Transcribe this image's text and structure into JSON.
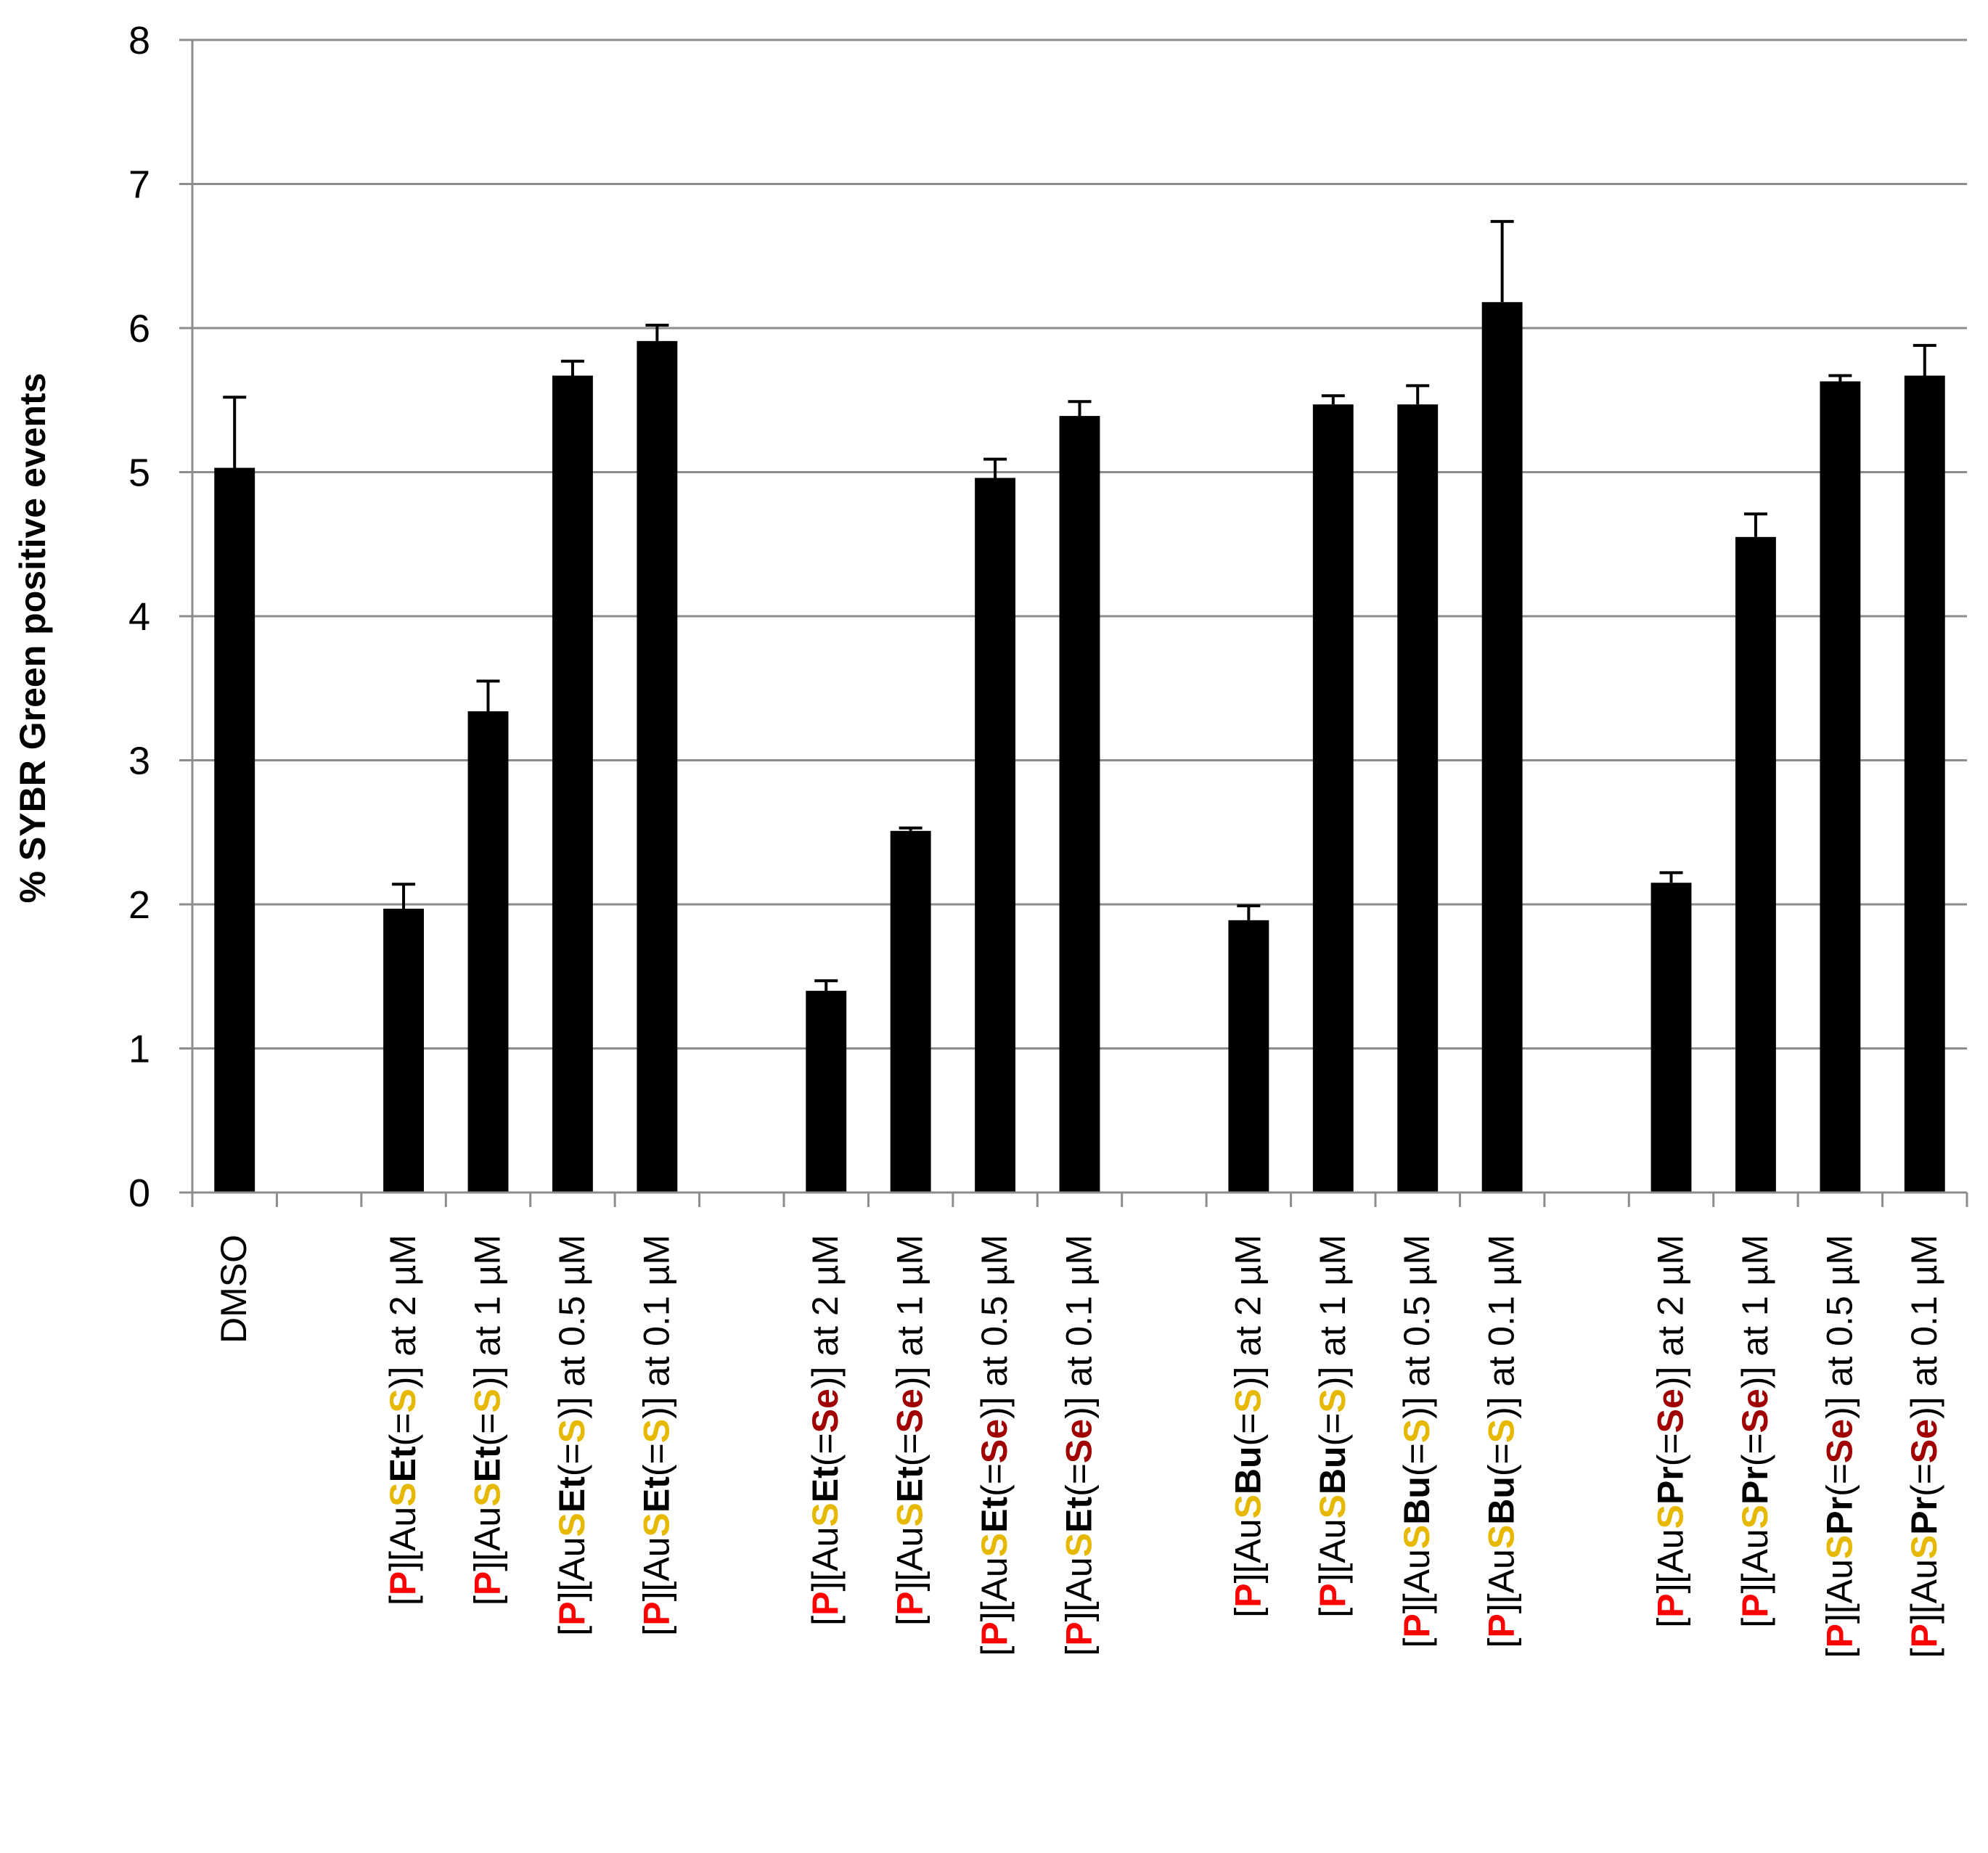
{
  "chart_data": {
    "type": "bar",
    "ylabel": "% SYBR Green positive events",
    "ylim": [
      0,
      8
    ],
    "yticks": [
      0,
      1,
      2,
      3,
      4,
      5,
      6,
      7,
      8
    ],
    "grid": true,
    "colors": {
      "bar": "#000000",
      "grid": "#8c8c8c",
      "P": "#ff0000",
      "S": "#e6b800",
      "Se": "#a00000"
    },
    "categories": [
      {
        "segments": [
          {
            "text": "DMSO"
          }
        ]
      },
      {
        "segments": []
      },
      {
        "segments": [
          {
            "text": "[",
            "style": "plain"
          },
          {
            "text": "P",
            "style": "P"
          },
          {
            "text": "][Au",
            "style": "plain"
          },
          {
            "text": "S",
            "style": "S"
          },
          {
            "text": "Et",
            "style": "bold"
          },
          {
            "text": "(=",
            "style": "plain"
          },
          {
            "text": "S",
            "style": "S"
          },
          {
            "text": ")] at 2 µM",
            "style": "plain"
          }
        ]
      },
      {
        "segments": [
          {
            "text": "[",
            "style": "plain"
          },
          {
            "text": "P",
            "style": "P"
          },
          {
            "text": "][Au",
            "style": "plain"
          },
          {
            "text": "S",
            "style": "S"
          },
          {
            "text": "Et",
            "style": "bold"
          },
          {
            "text": "(=",
            "style": "plain"
          },
          {
            "text": "S",
            "style": "S"
          },
          {
            "text": ")] at 1 µM",
            "style": "plain"
          }
        ]
      },
      {
        "segments": [
          {
            "text": "[",
            "style": "plain"
          },
          {
            "text": "P",
            "style": "P"
          },
          {
            "text": "][Au",
            "style": "plain"
          },
          {
            "text": "S",
            "style": "S"
          },
          {
            "text": "Et",
            "style": "bold"
          },
          {
            "text": "(=",
            "style": "plain"
          },
          {
            "text": "S",
            "style": "S"
          },
          {
            "text": ")] at 0.5 µM",
            "style": "plain"
          }
        ]
      },
      {
        "segments": [
          {
            "text": "[",
            "style": "plain"
          },
          {
            "text": "P",
            "style": "P"
          },
          {
            "text": "][Au",
            "style": "plain"
          },
          {
            "text": "S",
            "style": "S"
          },
          {
            "text": "Et",
            "style": "bold"
          },
          {
            "text": "(=",
            "style": "plain"
          },
          {
            "text": "S",
            "style": "S"
          },
          {
            "text": ")] at 0.1 µM",
            "style": "plain"
          }
        ]
      },
      {
        "segments": []
      },
      {
        "segments": [
          {
            "text": "[",
            "style": "plain"
          },
          {
            "text": "P",
            "style": "P"
          },
          {
            "text": "][Au",
            "style": "plain"
          },
          {
            "text": "S",
            "style": "S"
          },
          {
            "text": "Et",
            "style": "bold"
          },
          {
            "text": "(=",
            "style": "plain"
          },
          {
            "text": "Se",
            "style": "Se"
          },
          {
            "text": ")] at 2 µM",
            "style": "plain"
          }
        ]
      },
      {
        "segments": [
          {
            "text": "[",
            "style": "plain"
          },
          {
            "text": "P",
            "style": "P"
          },
          {
            "text": "][Au",
            "style": "plain"
          },
          {
            "text": "S",
            "style": "S"
          },
          {
            "text": "Et",
            "style": "bold"
          },
          {
            "text": "(=",
            "style": "plain"
          },
          {
            "text": "Se",
            "style": "Se"
          },
          {
            "text": ")] at 1 µM",
            "style": "plain"
          }
        ]
      },
      {
        "segments": [
          {
            "text": "[",
            "style": "plain"
          },
          {
            "text": "P",
            "style": "P"
          },
          {
            "text": "][Au",
            "style": "plain"
          },
          {
            "text": "S",
            "style": "S"
          },
          {
            "text": "Et",
            "style": "bold"
          },
          {
            "text": "(=",
            "style": "plain"
          },
          {
            "text": "Se",
            "style": "Se"
          },
          {
            "text": ")] at 0.5 µM",
            "style": "plain"
          }
        ]
      },
      {
        "segments": [
          {
            "text": "[",
            "style": "plain"
          },
          {
            "text": "P",
            "style": "P"
          },
          {
            "text": "][Au",
            "style": "plain"
          },
          {
            "text": "S",
            "style": "S"
          },
          {
            "text": "Et",
            "style": "bold"
          },
          {
            "text": "(=",
            "style": "plain"
          },
          {
            "text": "Se",
            "style": "Se"
          },
          {
            "text": ")] at 0.1 µM",
            "style": "plain"
          }
        ]
      },
      {
        "segments": []
      },
      {
        "segments": [
          {
            "text": "[",
            "style": "plain"
          },
          {
            "text": "P",
            "style": "P"
          },
          {
            "text": "][Au",
            "style": "plain"
          },
          {
            "text": "S",
            "style": "S"
          },
          {
            "text": "Bu",
            "style": "bold"
          },
          {
            "text": "(=",
            "style": "plain"
          },
          {
            "text": "S",
            "style": "S"
          },
          {
            "text": ")] at 2 µM",
            "style": "plain"
          }
        ]
      },
      {
        "segments": [
          {
            "text": "[",
            "style": "plain"
          },
          {
            "text": "P",
            "style": "P"
          },
          {
            "text": "][Au",
            "style": "plain"
          },
          {
            "text": "S",
            "style": "S"
          },
          {
            "text": "Bu",
            "style": "bold"
          },
          {
            "text": "(=",
            "style": "plain"
          },
          {
            "text": "S",
            "style": "S"
          },
          {
            "text": ")] at 1 µM",
            "style": "plain"
          }
        ]
      },
      {
        "segments": [
          {
            "text": "[",
            "style": "plain"
          },
          {
            "text": "P",
            "style": "P"
          },
          {
            "text": "][Au",
            "style": "plain"
          },
          {
            "text": "S",
            "style": "S"
          },
          {
            "text": "Bu",
            "style": "bold"
          },
          {
            "text": "(=",
            "style": "plain"
          },
          {
            "text": "S",
            "style": "S"
          },
          {
            "text": ")] at 0.5 µM",
            "style": "plain"
          }
        ]
      },
      {
        "segments": [
          {
            "text": "[",
            "style": "plain"
          },
          {
            "text": "P",
            "style": "P"
          },
          {
            "text": "][Au",
            "style": "plain"
          },
          {
            "text": "S",
            "style": "S"
          },
          {
            "text": "Bu",
            "style": "bold"
          },
          {
            "text": "(=",
            "style": "plain"
          },
          {
            "text": "S",
            "style": "S"
          },
          {
            "text": ")] at 0.1 µM",
            "style": "plain"
          }
        ]
      },
      {
        "segments": []
      },
      {
        "segments": [
          {
            "text": "[",
            "style": "plain"
          },
          {
            "text": "P",
            "style": "P"
          },
          {
            "text": "][Au",
            "style": "plain"
          },
          {
            "text": "S",
            "style": "S"
          },
          {
            "text": "Pr",
            "style": "bold"
          },
          {
            "text": "(=",
            "style": "plain"
          },
          {
            "text": "Se",
            "style": "Se"
          },
          {
            "text": ")] at 2 µM",
            "style": "plain"
          }
        ]
      },
      {
        "segments": [
          {
            "text": "[",
            "style": "plain"
          },
          {
            "text": "P",
            "style": "P"
          },
          {
            "text": "][Au",
            "style": "plain"
          },
          {
            "text": "S",
            "style": "S"
          },
          {
            "text": "Pr",
            "style": "bold"
          },
          {
            "text": "(=",
            "style": "plain"
          },
          {
            "text": "Se",
            "style": "Se"
          },
          {
            "text": ")] at 1 µM",
            "style": "plain"
          }
        ]
      },
      {
        "segments": [
          {
            "text": "[",
            "style": "plain"
          },
          {
            "text": "P",
            "style": "P"
          },
          {
            "text": "][Au",
            "style": "plain"
          },
          {
            "text": "S",
            "style": "S"
          },
          {
            "text": "Pr",
            "style": "bold"
          },
          {
            "text": "(=",
            "style": "plain"
          },
          {
            "text": "Se",
            "style": "Se"
          },
          {
            "text": ")] at 0.5 µM",
            "style": "plain"
          }
        ]
      },
      {
        "segments": [
          {
            "text": "[",
            "style": "plain"
          },
          {
            "text": "P",
            "style": "P"
          },
          {
            "text": "][Au",
            "style": "plain"
          },
          {
            "text": "S",
            "style": "S"
          },
          {
            "text": "Pr",
            "style": "bold"
          },
          {
            "text": "(=",
            "style": "plain"
          },
          {
            "text": "Se",
            "style": "Se"
          },
          {
            "text": ")] at 0.1 µM",
            "style": "plain"
          }
        ]
      }
    ],
    "values": [
      5.03,
      null,
      1.97,
      3.34,
      5.67,
      5.91,
      null,
      1.4,
      2.51,
      4.96,
      5.39,
      null,
      1.89,
      5.47,
      5.47,
      6.18,
      null,
      2.15,
      4.55,
      5.63,
      5.67
    ],
    "errors": [
      0.49,
      null,
      0.17,
      0.21,
      0.1,
      0.11,
      null,
      0.07,
      0.02,
      0.13,
      0.1,
      null,
      0.1,
      0.06,
      0.13,
      0.56,
      null,
      0.07,
      0.16,
      0.04,
      0.21
    ]
  }
}
